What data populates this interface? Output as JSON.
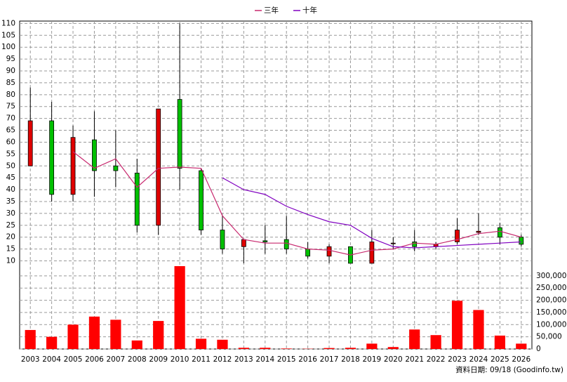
{
  "chart_data": {
    "type": "candlestick",
    "categories": [
      "2003",
      "2004",
      "2005",
      "2006",
      "2007",
      "2008",
      "2009",
      "2010",
      "2011",
      "2012",
      "2013",
      "2014",
      "2015",
      "2016",
      "2017",
      "2018",
      "2019",
      "2020",
      "2021",
      "2022",
      "2023",
      "2024",
      "2025",
      "2026"
    ],
    "open": [
      50,
      69,
      38,
      61,
      50,
      47,
      25,
      78,
      48,
      23,
      16,
      18.5,
      19,
      15,
      12,
      16,
      9,
      17.3,
      18,
      16,
      18,
      22,
      24,
      20
    ],
    "high": [
      83,
      77,
      67,
      73,
      65,
      53,
      74,
      110,
      49,
      29,
      19,
      25,
      29,
      18,
      17,
      16,
      23,
      20,
      23,
      18,
      28,
      30,
      26,
      21
    ],
    "low": [
      50,
      35,
      35,
      37,
      41,
      22,
      21,
      40,
      21,
      13,
      9,
      13,
      13,
      11,
      9,
      9,
      9,
      15,
      14,
      15,
      17,
      21,
      17,
      16
    ],
    "close": [
      69,
      38,
      62,
      48,
      48,
      25,
      74,
      49,
      23,
      15,
      19,
      18,
      15,
      12,
      16,
      9,
      18,
      17.5,
      16,
      17,
      23,
      22.5,
      20,
      17
    ],
    "up_color": "#e00000",
    "down_color": "#00c000",
    "ylim": [
      7.5,
      111
    ],
    "yticks": [
      10,
      15,
      20,
      25,
      30,
      35,
      40,
      45,
      50,
      55,
      60,
      65,
      70,
      75,
      80,
      85,
      90,
      95,
      100,
      105,
      110
    ],
    "grid": true,
    "lines": [
      {
        "name": "三年",
        "color": "#c8286e",
        "values": [
          null,
          null,
          56,
          49,
          53,
          41,
          49,
          49.5,
          49,
          29,
          19,
          17.5,
          17.5,
          15,
          14.5,
          12.5,
          14.5,
          15,
          17.5,
          17,
          19,
          21.5,
          22.5,
          20
        ]
      },
      {
        "name": "十年",
        "color": "#8000c0",
        "values": [
          null,
          null,
          null,
          null,
          null,
          null,
          null,
          null,
          null,
          45,
          40,
          38,
          33,
          29.5,
          26.5,
          25,
          19.5,
          16,
          15.5,
          16,
          16.5,
          17,
          17.5,
          18
        ]
      }
    ],
    "volume": {
      "color": "#ff0000",
      "values": [
        78000,
        50000,
        100000,
        133000,
        120000,
        35000,
        115000,
        340000,
        42000,
        38000,
        5000,
        5000,
        2000,
        1000,
        4000,
        5000,
        22000,
        8000,
        80000,
        57000,
        198000,
        160000,
        55000,
        22000
      ],
      "ylim": [
        0,
        340000
      ],
      "yticks": [
        0,
        {
          "value": 50000,
          "label": "50,000"
        },
        {
          "value": 100000,
          "label": "100,000"
        },
        {
          "value": 150000,
          "label": "150,000"
        },
        {
          "value": 200000,
          "label": "200,000"
        },
        {
          "value": 250000,
          "label": "250,000"
        },
        {
          "value": 300000,
          "label": "300,000"
        }
      ]
    },
    "footer": "資料日期: 09/18 (Goodinfo.tw)"
  }
}
